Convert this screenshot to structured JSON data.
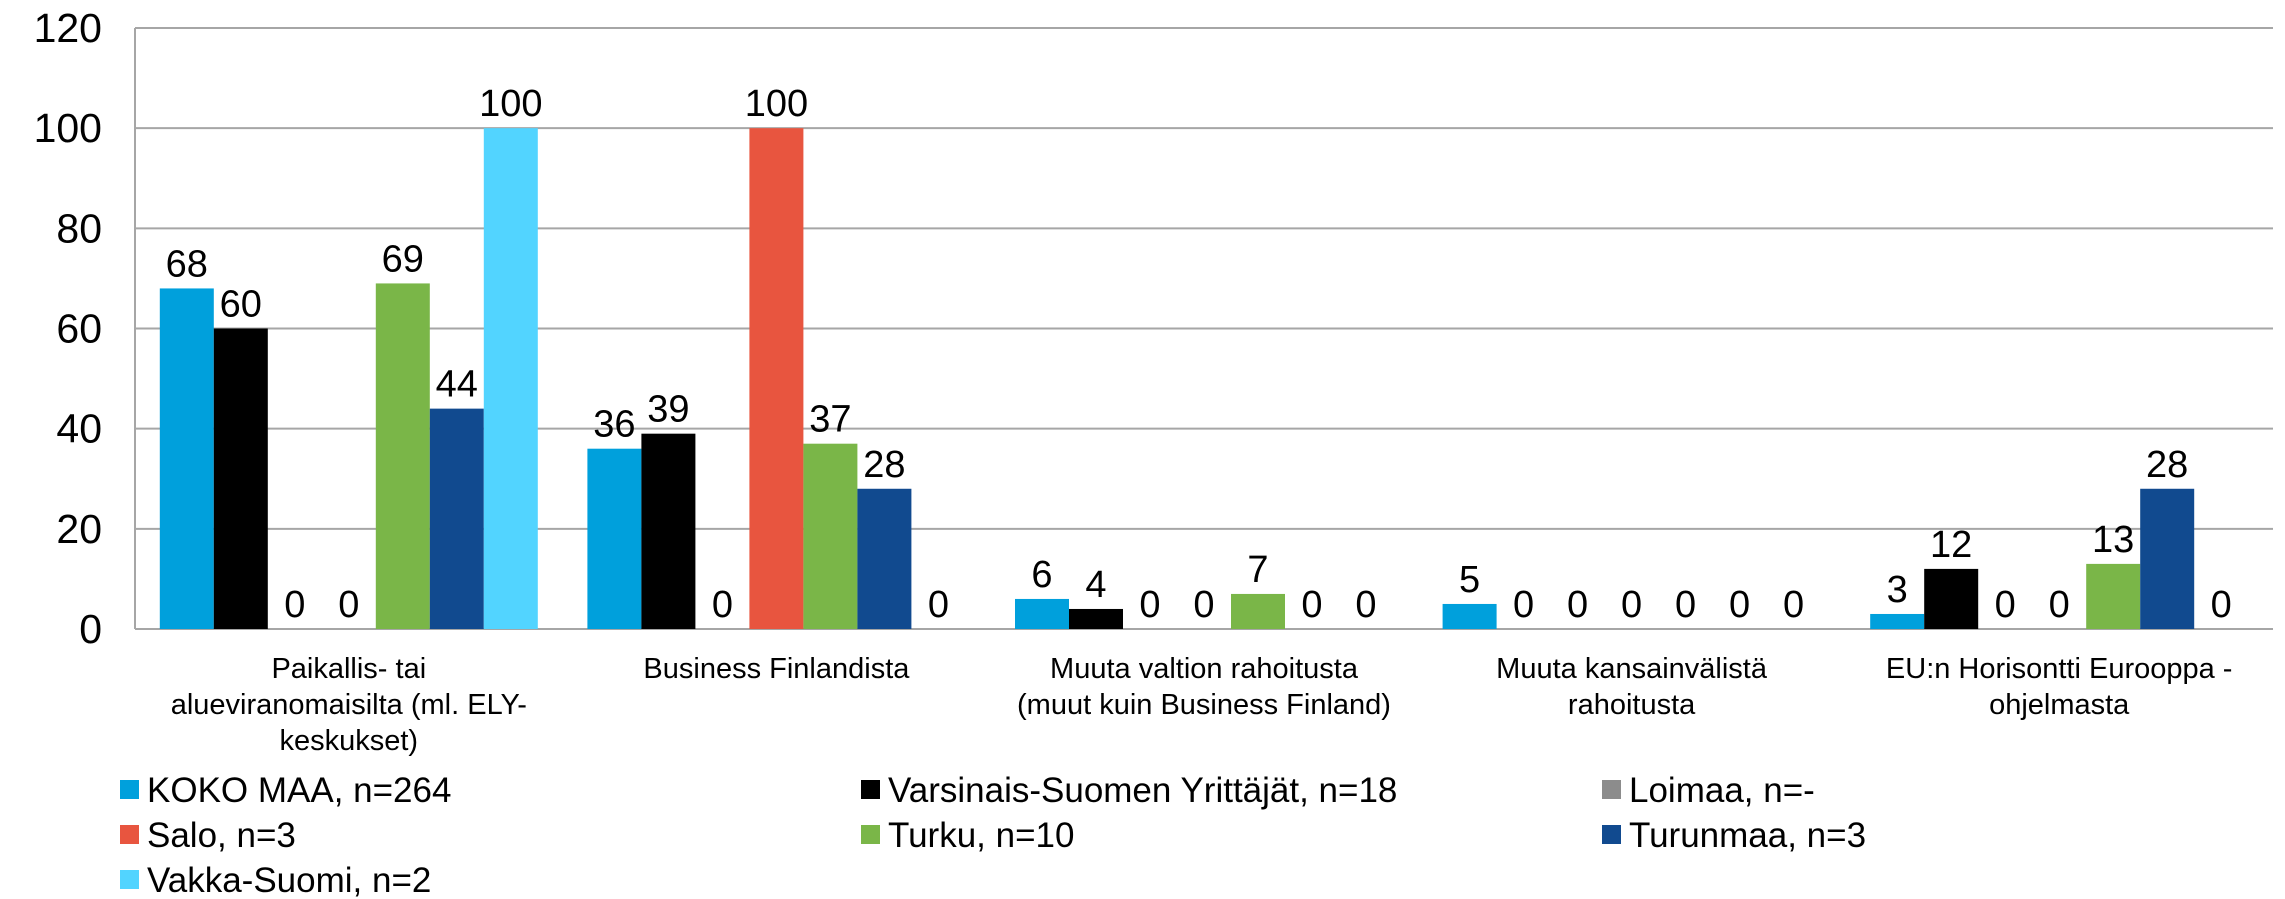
{
  "chart_data": {
    "type": "bar",
    "categories": [
      "Paikallis- tai\nalueviranomaisilta (ml. ELY-\nkeskukset)",
      "Business Finlandista",
      "Muuta valtion rahoitusta\n(muut kuin Business Finland)",
      "Muuta kansainvälistä\nrahoitusta",
      "EU:n Horisontti Eurooppa -\nohjelmasta"
    ],
    "series": [
      {
        "name": "KOKO MAA, n=264",
        "color": "#00a0dc",
        "values": [
          68,
          36,
          6,
          5,
          3
        ]
      },
      {
        "name": "Varsinais-Suomen Yrittäjät, n=18",
        "color": "#000000",
        "values": [
          60,
          39,
          4,
          0,
          12
        ]
      },
      {
        "name": "Loimaa, n=-",
        "color": "#8c8c8c",
        "values": [
          0,
          0,
          0,
          0,
          0
        ]
      },
      {
        "name": "Salo, n=3",
        "color": "#e8553f",
        "values": [
          0,
          100,
          0,
          0,
          0
        ]
      },
      {
        "name": "Turku, n=10",
        "color": "#7ab648",
        "values": [
          69,
          37,
          7,
          0,
          13
        ]
      },
      {
        "name": "Turunmaa, n=3",
        "color": "#114a8f",
        "values": [
          44,
          28,
          0,
          0,
          28
        ]
      },
      {
        "name": "Vakka-Suomi, n=2",
        "color": "#52d4ff",
        "values": [
          100,
          0,
          0,
          0,
          0
        ]
      }
    ],
    "ylim": [
      0,
      120
    ],
    "yticks": [
      0,
      20,
      40,
      60,
      80,
      100,
      120
    ],
    "grid": true,
    "legend": "bottom"
  }
}
